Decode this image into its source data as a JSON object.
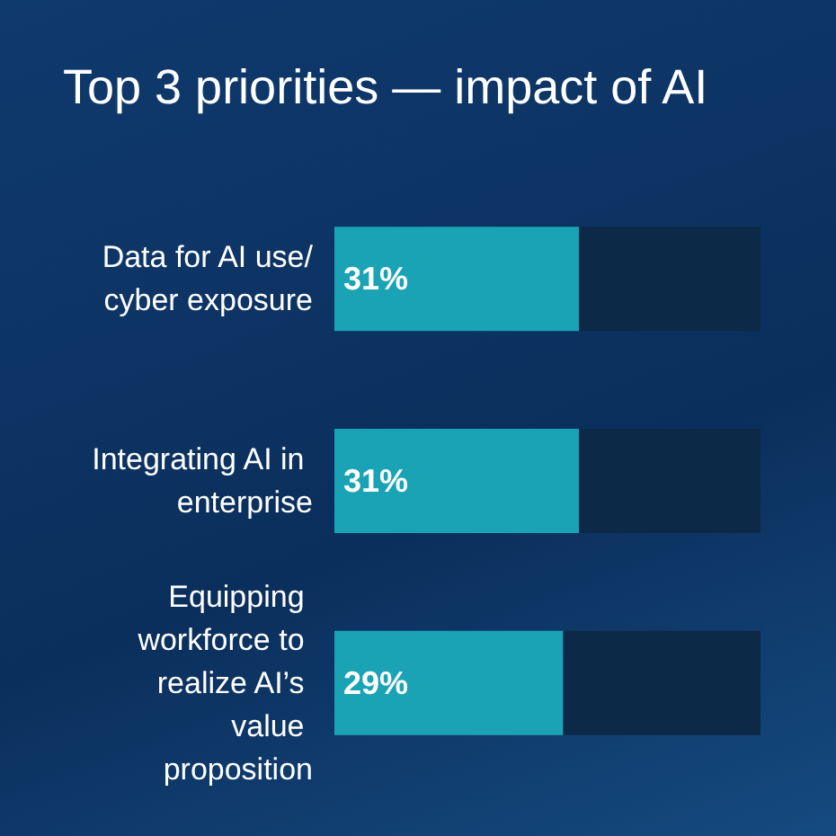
{
  "chart_data": {
    "type": "bar",
    "orientation": "horizontal",
    "title": "Top 3 priorities — impact of AI",
    "stacked": true,
    "categories": [
      "Data for AI use/cyber exposure",
      "Integrating AI in enterprise",
      "Equipping workforce to realize AI’s value proposition"
    ],
    "series": [
      {
        "color": "#1aa3b5",
        "values": [
          31,
          31,
          29
        ],
        "value_labels": [
          "31%",
          "31%",
          "29%"
        ]
      },
      {
        "color": "#0c2a48",
        "values": [
          23,
          23,
          25
        ]
      }
    ],
    "xlim": [
      0,
      54
    ]
  }
}
